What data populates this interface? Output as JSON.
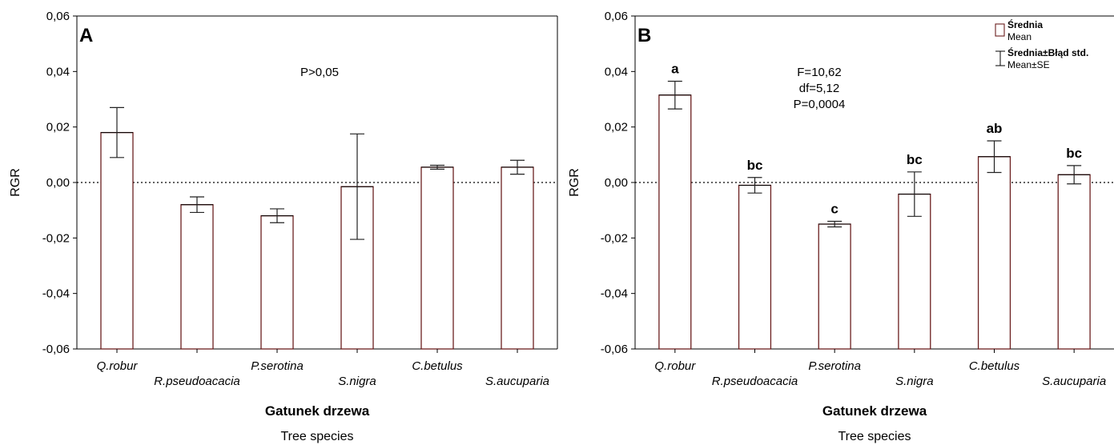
{
  "chart_data": [
    {
      "type": "bar",
      "panel_label": "A",
      "categories": [
        "Q.robur",
        "R.pseudoacacia",
        "P.serotina",
        "S.nigra",
        "C.betulus",
        "S.aucuparia"
      ],
      "values": [
        0.018,
        -0.008,
        -0.012,
        -0.0015,
        0.0055,
        0.0055
      ],
      "errors": [
        0.009,
        0.0028,
        0.0025,
        0.019,
        0.0007,
        0.0025
      ],
      "ylabel": "RGR",
      "xlabel": "Gatunek drzewa",
      "xlabel_sub": "Tree species",
      "ylim": [
        -0.06,
        0.06
      ],
      "yticks": [
        "0,06",
        "0,04",
        "0,02",
        "0,00",
        "-0,02",
        "-0,04",
        "-0,06"
      ],
      "stats": [
        "P>0,05"
      ],
      "group_letters": [],
      "reference_line": 0,
      "bar_edge_color": "#6b1f1f",
      "error_color": "#222222"
    },
    {
      "type": "bar",
      "panel_label": "B",
      "categories": [
        "Q.robur",
        "R.pseudoacacia",
        "P.serotina",
        "S.nigra",
        "C.betulus",
        "S.aucuparia"
      ],
      "values": [
        0.0315,
        -0.001,
        -0.015,
        -0.0042,
        0.0093,
        0.0028
      ],
      "errors": [
        0.005,
        0.0028,
        0.001,
        0.008,
        0.0057,
        0.0033
      ],
      "ylabel": "RGR",
      "xlabel": "Gatunek drzewa",
      "xlabel_sub": "Tree species",
      "ylim": [
        -0.06,
        0.06
      ],
      "yticks": [
        "0,06",
        "0,04",
        "0,02",
        "0,00",
        "-0,02",
        "-0,04",
        "-0,06"
      ],
      "stats": [
        "F=10,62",
        "df=5,12",
        "P=0,0004"
      ],
      "group_letters": [
        "a",
        "bc",
        "c",
        "bc",
        "ab",
        "bc"
      ],
      "reference_line": 0,
      "legend": {
        "placement": "top-right",
        "mean_label": "Średnia",
        "mean_label_sub": "Mean",
        "se_label": "Średnia±Błąd std.",
        "se_label_sub": "Mean±SE"
      },
      "bar_edge_color": "#6b1f1f",
      "error_color": "#222222"
    }
  ]
}
